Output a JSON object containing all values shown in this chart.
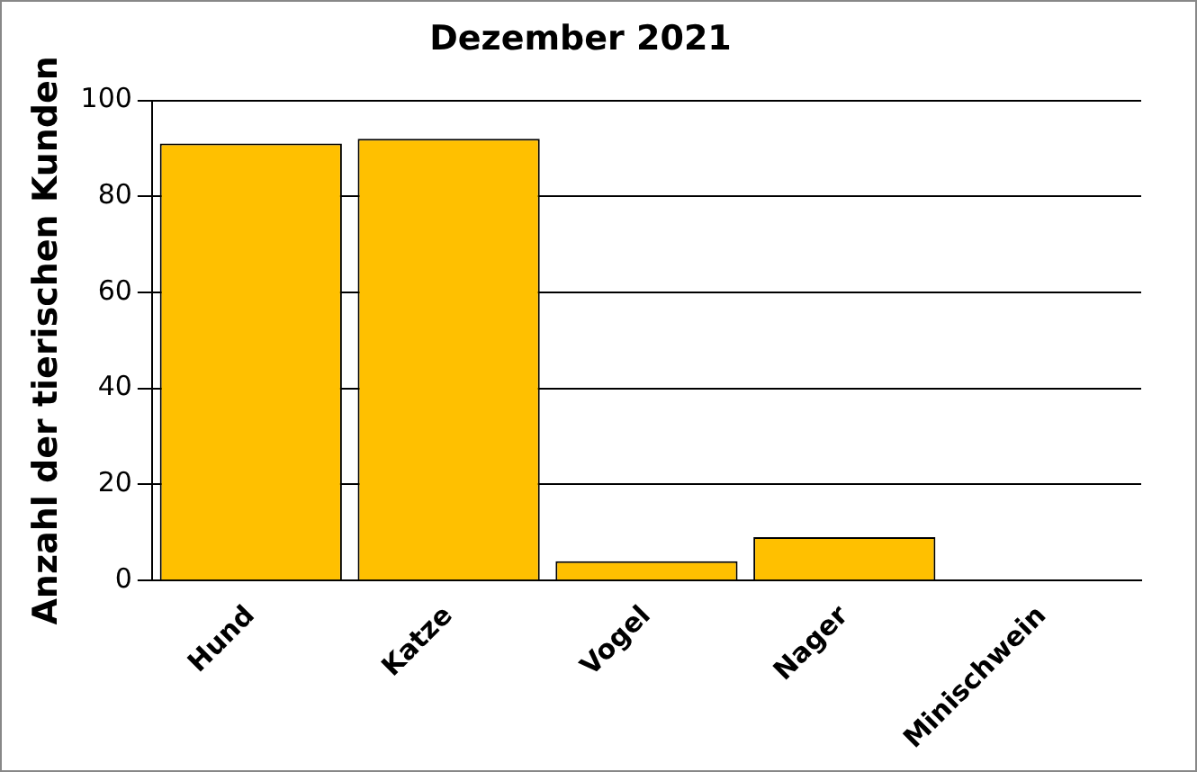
{
  "chart_data": {
    "type": "bar",
    "title": "Dezember 2021",
    "ylabel": "Anzahl der tierischen Kunden",
    "categories": [
      "Hund",
      "Katze",
      "Vogel",
      "Nager",
      "Minischwein"
    ],
    "values": [
      91,
      92,
      4,
      9,
      0
    ],
    "color": "#ffc000",
    "ylim": [
      0,
      100
    ],
    "yticks": [
      0,
      20,
      40,
      60,
      80,
      100
    ],
    "grid": "y",
    "legend": false
  }
}
